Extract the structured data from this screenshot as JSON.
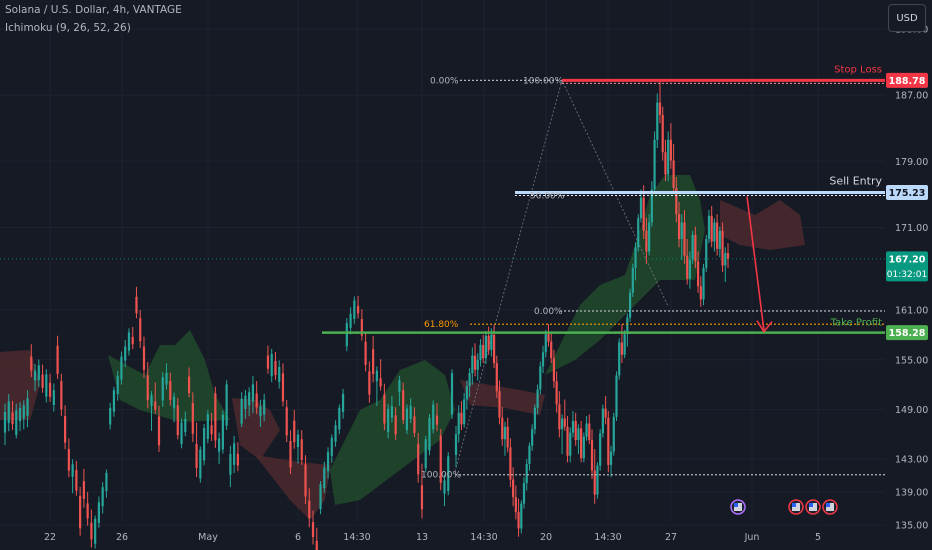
{
  "header": {
    "title": "Solana / U.S. Dollar, 4h, VANTAGE",
    "indicator": "Ichimoku (9, 26, 52, 26)",
    "currency_button": "USD"
  },
  "colors": {
    "background": "#161a25",
    "up_candle": "#26a69a",
    "down_candle": "#ef5350",
    "cloud_bull": "#214a2c",
    "cloud_bear": "#4c2a2e",
    "stop_loss": "#f23645",
    "sell_entry": "#bbd9fb",
    "take_profit": "#4caf50",
    "fib_orange": "#ff9800",
    "arrow": "#f23645",
    "axis_text": "#b2b5be"
  },
  "chart_data": {
    "type": "candlestick",
    "title": "Solana / U.S. Dollar, 4h, VANTAGE",
    "y_ticks": [
      195.0,
      187.0,
      179.0,
      171.0,
      161.0,
      155.0,
      149.0,
      143.0,
      139.0,
      135.0
    ],
    "x_ticks": [
      "22",
      "26",
      "May",
      "6",
      "14:30",
      "13",
      "14:30",
      "20",
      "14:30",
      "27",
      "Jun",
      "5"
    ],
    "ylim": [
      132.0,
      198.5
    ],
    "price_labels": [
      {
        "name": "stop-loss-price",
        "value": 188.78,
        "text": "188.78",
        "color": "#f23645"
      },
      {
        "name": "sell-entry-price",
        "value": 175.23,
        "text": "175.23",
        "color": "#bbd9fb"
      },
      {
        "name": "current-price",
        "value": 167.2,
        "text": "167.20",
        "subtext": "01:32:01",
        "color": "#089981"
      },
      {
        "name": "take-profit-price",
        "value": 158.28,
        "text": "158.28",
        "color": "#4caf50"
      }
    ],
    "annotations": {
      "stop_loss": "Stop Loss",
      "sell_entry": "Sell Entry",
      "take_profit": "Take Profit"
    },
    "fib_labels": {
      "top_a": "0.00%",
      "top_b": "100.00%",
      "entry_mid": "50.00%",
      "mid_zero": "0.00%",
      "orange": "61.80%",
      "bottom": "100.00%"
    },
    "levels": {
      "stop_loss": 188.78,
      "sell_entry": 175.23,
      "take_profit": 158.28,
      "fib_zero": 160.9,
      "fib_618": 159.3,
      "fib_bottom": 141.1,
      "current": 167.2
    },
    "swing_points": [
      {
        "label": "low-1",
        "value": 141.5
      },
      {
        "label": "high",
        "value": 188.8
      },
      {
        "label": "low-2",
        "value": 161.5
      }
    ],
    "candles": [
      [
        143.5,
        147,
        142,
        146
      ],
      [
        146,
        149.5,
        145,
        148.6
      ],
      [
        148.6,
        150,
        146.5,
        147.2
      ],
      [
        147.2,
        151,
        146.8,
        150.2
      ],
      [
        150.2,
        152.5,
        149,
        151.8
      ],
      [
        151.8,
        154,
        150.5,
        153.4
      ],
      [
        153.4,
        156.5,
        152,
        155.5
      ],
      [
        155.5,
        157,
        153,
        153.8
      ],
      [
        153.8,
        155.8,
        152.5,
        155
      ],
      [
        155,
        157.5,
        154.2,
        156.8
      ],
      [
        156.8,
        158,
        154.6,
        155.2
      ],
      [
        155.2,
        158.5,
        154.5,
        157.9
      ],
      [
        157.9,
        159,
        155.6,
        156.2
      ],
      [
        156.2,
        158.8,
        155.4,
        158
      ],
      [
        158,
        159.2,
        154,
        154.6
      ],
      [
        154.6,
        155.5,
        150.4,
        151.2
      ],
      [
        151.2,
        152.5,
        147.2,
        148
      ],
      [
        148,
        149.3,
        144.6,
        145.4
      ],
      [
        145.4,
        147.5,
        143.4,
        146.9
      ],
      [
        146.9,
        148,
        143.8,
        144.4
      ],
      [
        144.4,
        145.5,
        139.6,
        140.5
      ],
      [
        140.5,
        142,
        137.3,
        138.4
      ],
      [
        138.4,
        139.8,
        135.7,
        136.6
      ],
      [
        136.6,
        138.2,
        133.6,
        134.6
      ],
      [
        134.6,
        138,
        134,
        137.6
      ],
      [
        137.6,
        140.8,
        137,
        140.1
      ],
      [
        140.1,
        143,
        139.2,
        142.4
      ],
      [
        142.4,
        145,
        141.6,
        144.6
      ],
      [
        144.6,
        147.2,
        144,
        146.6
      ],
      [
        146.6,
        149.6,
        146,
        149.2
      ],
      [
        149.2,
        152,
        148.4,
        151.4
      ],
      [
        151.4,
        154.8,
        150.8,
        154.2
      ],
      [
        154.2,
        156.7,
        153.4,
        155.9
      ],
      [
        155.9,
        158.6,
        155.3,
        158.1
      ],
      [
        158.1,
        159.3,
        156.6,
        157.2
      ],
      [
        157.2,
        158.4,
        154.6,
        155.2
      ],
      [
        155.2,
        156.2,
        151.6,
        152.4
      ],
      [
        152.4,
        153.6,
        148.6,
        149.6
      ],
      [
        149.6,
        151.2,
        145.6,
        146.6
      ],
      [
        146.6,
        148.4,
        143.6,
        147.9
      ],
      [
        147.9,
        150.2,
        146.4,
        146.9
      ],
      [
        146.9,
        148.2,
        142.6,
        143.4
      ],
      [
        143.4,
        146.8,
        142.6,
        146.2
      ],
      [
        146.2,
        148.8,
        145.6,
        147.6
      ],
      [
        147.6,
        148.6,
        144.6,
        145.3
      ],
      [
        145.3,
        147.2,
        143.6,
        146.7
      ],
      [
        146.7,
        147.6,
        142.6,
        143.1
      ],
      [
        143.1,
        146.2,
        142.6,
        145.7
      ],
      [
        145.7,
        148.2,
        145.2,
        147.3
      ],
      [
        147.3,
        148.4,
        144.8,
        145.3
      ],
      [
        145.3,
        146.6,
        140.6,
        141.6
      ],
      [
        141.6,
        144.2,
        137.6,
        138.7
      ],
      [
        138.7,
        142.6,
        138.2,
        142.2
      ],
      [
        142.2,
        146.6,
        141.6,
        146.1
      ],
      [
        146.1,
        149.6,
        145.6,
        149.1
      ],
      [
        149.1,
        150.6,
        147.2,
        148
      ],
      [
        148,
        148.8,
        141.4,
        142.3
      ],
      [
        142.3,
        144.6,
        140.8,
        143.9
      ],
      [
        143.9,
        148.6,
        143.4,
        148.1
      ],
      [
        148.1,
        153.6,
        147.6,
        153.1
      ],
      [
        153.1,
        157.6,
        152.6,
        157.1
      ],
      [
        157.1,
        159.3,
        154.6,
        155.6
      ],
      [
        155.6,
        158.6,
        155.2,
        158.1
      ],
      [
        158.1,
        160.6,
        156.6,
        160.1
      ],
      [
        160.1,
        163.6,
        159.6,
        163.1
      ],
      [
        163.1,
        166.6,
        162.6,
        166.1
      ],
      [
        166.1,
        169.2,
        164.6,
        168.6
      ],
      [
        168.6,
        172.6,
        168.1,
        172.1
      ],
      [
        172.1,
        175.6,
        171.6,
        174.6
      ],
      [
        174.6,
        176.1,
        169.6,
        170.6
      ],
      [
        170.6,
        172.2,
        166.6,
        168.1
      ],
      [
        168.1,
        172.6,
        167.6,
        171.6
      ],
      [
        171.6,
        176.6,
        171.1,
        175.6
      ],
      [
        175.6,
        182.6,
        175.1,
        181.6
      ],
      [
        181.6,
        187.2,
        180.6,
        186.1
      ],
      [
        186.1,
        188.8,
        183.6,
        184.6
      ],
      [
        184.6,
        185.6,
        179.1,
        180.1
      ],
      [
        180.1,
        181.6,
        176.6,
        177.4
      ],
      [
        177.4,
        182.6,
        176.6,
        181.6
      ],
      [
        181.6,
        183.6,
        178.1,
        179.1
      ],
      [
        179.1,
        181.1,
        175.1,
        175.8
      ],
      [
        175.8,
        177.1,
        171.6,
        172.6
      ],
      [
        172.6,
        174.1,
        168.6,
        169.6
      ],
      [
        169.6,
        172.6,
        167.1,
        171.6
      ],
      [
        171.6,
        173.1,
        166.6,
        167.6
      ],
      [
        167.6,
        169.6,
        164.1,
        164.8
      ],
      [
        164.8,
        168.1,
        163.6,
        167.1
      ],
      [
        167.1,
        170.6,
        166.6,
        170.1
      ],
      [
        170.1,
        171.1,
        166.1,
        166.9
      ],
      [
        166.9,
        168.1,
        163.1,
        163.9
      ],
      [
        163.9,
        165.1,
        161.4,
        162.3
      ],
      [
        162.3,
        166.6,
        161.6,
        166.1
      ],
      [
        166.1,
        170.1,
        165.6,
        169.6
      ],
      [
        169.6,
        173.1,
        169.1,
        172.4
      ],
      [
        172.4,
        173.6,
        168.6,
        169.3
      ],
      [
        169.3,
        172.1,
        168.1,
        171.6
      ],
      [
        171.6,
        172.6,
        167.6,
        168.4
      ],
      [
        168.4,
        171.1,
        167.4,
        170.6
      ],
      [
        170.6,
        171.6,
        165.6,
        166.4
      ],
      [
        166.4,
        168.6,
        164.4,
        167.9
      ],
      [
        167.9,
        169.1,
        166.1,
        167.2
      ]
    ]
  }
}
